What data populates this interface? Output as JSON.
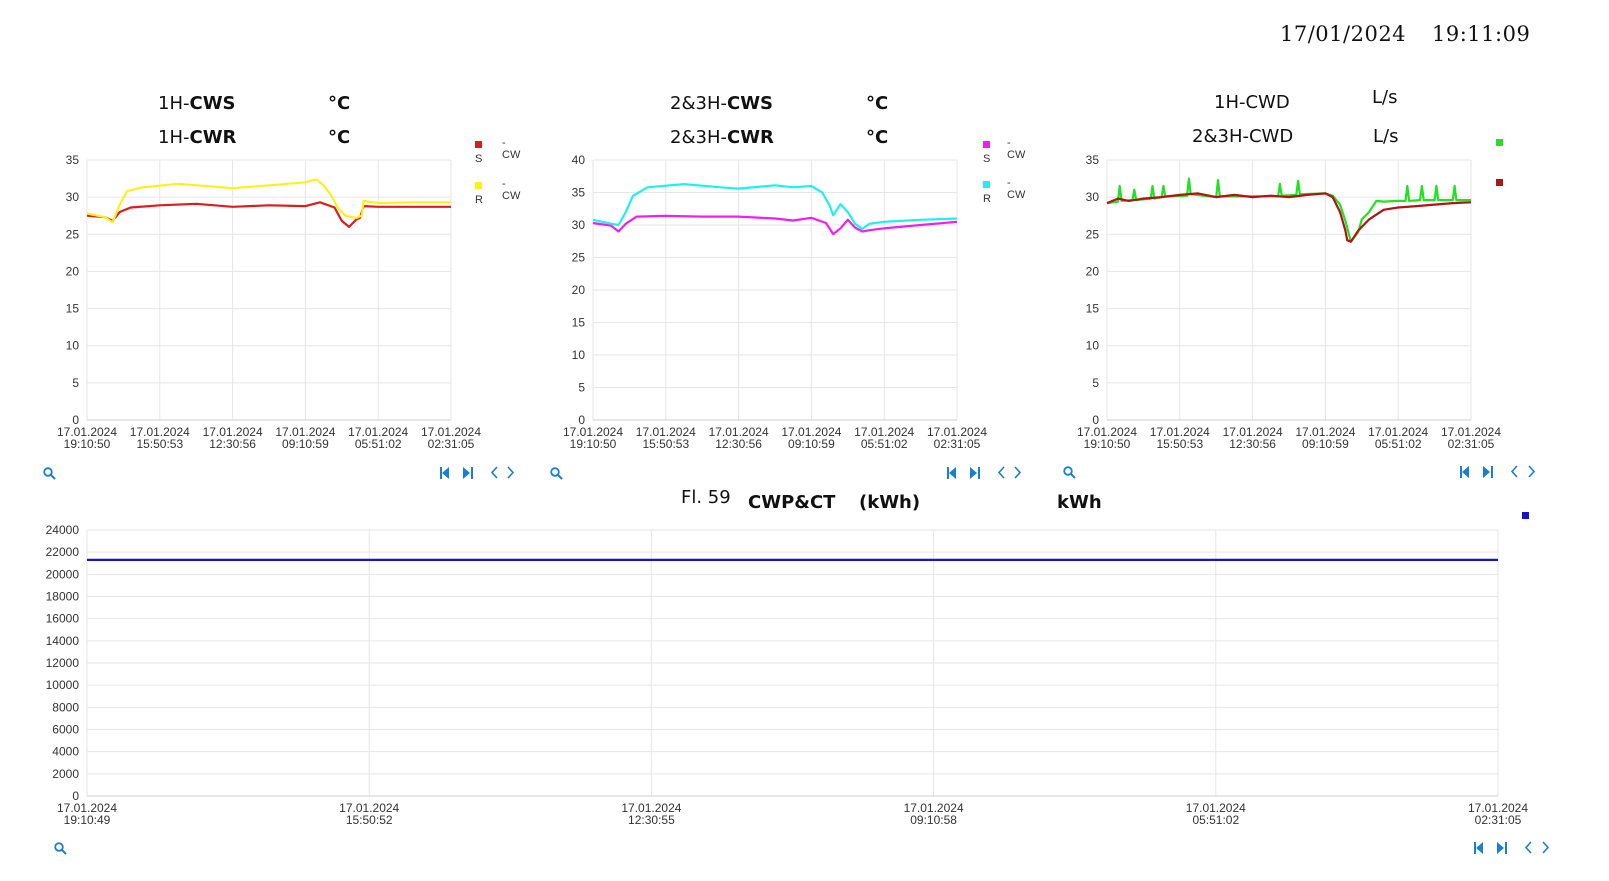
{
  "header": {
    "date": "17/01/2024",
    "time": "19:11:09"
  },
  "chart1": {
    "title1_prefix": "1H-",
    "title1_bold": "CWS",
    "unit1": "°C",
    "title2_prefix": "1H-",
    "title2_bold": "CWR",
    "unit2": "°C",
    "legend": [
      {
        "color": "#e01b1b",
        "label": "-CW",
        "sub": "S"
      },
      {
        "color": "#ffef20",
        "label": "-CW",
        "sub": "R"
      }
    ]
  },
  "chart2": {
    "title1_prefix": "2&3H-",
    "title1_bold": "CWS",
    "unit1": "°C",
    "title2_prefix": "2&3H-",
    "title2_bold": "CWR",
    "unit2": "°C",
    "legend": [
      {
        "color": "#f01ef0",
        "label": "-CW",
        "sub": "S"
      },
      {
        "color": "#1ef0f0",
        "label": "-CW",
        "sub": "R"
      }
    ]
  },
  "chart3": {
    "title1": "1H-CWD",
    "unit1": "L/s",
    "title2": "2&3H-CWD",
    "unit2": "L/s",
    "legend": [
      {
        "color": "#22e022",
        "label": ""
      },
      {
        "color": "#b01414",
        "label": ""
      }
    ]
  },
  "chart4": {
    "title_pre": "Fl. 59",
    "title_bold": "CWP&CT",
    "title_unit": "(kWh)",
    "unit": "kWh",
    "legend": [
      {
        "color": "#1414d0",
        "label": ""
      }
    ]
  },
  "icons": {
    "zoom": "magnifier-icon",
    "first": "skip-first-icon",
    "last": "skip-last-icon",
    "prev": "chevron-left-icon",
    "next": "chevron-right-icon"
  },
  "chart_data": [
    {
      "type": "line",
      "ylim": [
        0,
        35
      ],
      "yticks": [
        0,
        5,
        10,
        15,
        20,
        25,
        30,
        35
      ],
      "xtick_labels": [
        [
          "17.01.2024",
          "19:10:50"
        ],
        [
          "17.01.2024",
          "15:50:53"
        ],
        [
          "17.01.2024",
          "12:30:56"
        ],
        [
          "17.01.2024",
          "09:10:59"
        ],
        [
          "17.01.2024",
          "05:51:02"
        ],
        [
          "17.01.2024",
          "02:31:05"
        ]
      ],
      "grid": true,
      "series": [
        {
          "color": "#e01b1b",
          "t": [
            0,
            0.05,
            0.07,
            0.09,
            0.12,
            0.2,
            0.3,
            0.4,
            0.5,
            0.6,
            0.64,
            0.68,
            0.7,
            0.72,
            0.74,
            0.75,
            0.76,
            0.8,
            0.9,
            1.0
          ],
          "values": [
            27.5,
            27.3,
            26.8,
            28.0,
            28.6,
            28.9,
            29.1,
            28.7,
            28.9,
            28.8,
            29.3,
            28.6,
            26.8,
            26.0,
            27.0,
            27.2,
            28.8,
            28.7,
            28.7,
            28.7
          ]
        },
        {
          "color": "#ffef20",
          "t": [
            0,
            0.05,
            0.07,
            0.09,
            0.11,
            0.15,
            0.25,
            0.35,
            0.4,
            0.5,
            0.6,
            0.63,
            0.65,
            0.67,
            0.69,
            0.71,
            0.74,
            0.755,
            0.76,
            0.8,
            0.9,
            1.0
          ],
          "values": [
            27.8,
            27.3,
            26.6,
            29.0,
            30.8,
            31.3,
            31.8,
            31.4,
            31.2,
            31.6,
            32.0,
            32.4,
            31.6,
            30.3,
            28.5,
            27.5,
            27.2,
            27.5,
            29.5,
            29.2,
            29.3,
            29.3
          ]
        }
      ]
    },
    {
      "type": "line",
      "ylim": [
        0,
        40
      ],
      "yticks": [
        0,
        5,
        10,
        15,
        20,
        25,
        30,
        35,
        40
      ],
      "xtick_labels": [
        [
          "17.01.2024",
          "19:10:50"
        ],
        [
          "17.01.2024",
          "15:50:53"
        ],
        [
          "17.01.2024",
          "12:30:56"
        ],
        [
          "17.01.2024",
          "09:10:59"
        ],
        [
          "17.01.2024",
          "05:51:02"
        ],
        [
          "17.01.2024",
          "02:31:05"
        ]
      ],
      "grid": true,
      "series": [
        {
          "color": "#f01ef0",
          "t": [
            0,
            0.05,
            0.07,
            0.09,
            0.12,
            0.2,
            0.3,
            0.4,
            0.5,
            0.55,
            0.6,
            0.64,
            0.66,
            0.68,
            0.7,
            0.72,
            0.74,
            0.76,
            0.8,
            0.9,
            1.0
          ],
          "values": [
            30.3,
            29.9,
            29.0,
            30.2,
            31.3,
            31.4,
            31.3,
            31.3,
            31.0,
            30.7,
            31.1,
            30.3,
            28.6,
            29.5,
            30.8,
            29.6,
            29.0,
            29.2,
            29.5,
            30.0,
            30.5
          ]
        },
        {
          "color": "#1ef0f0",
          "t": [
            0,
            0.05,
            0.07,
            0.09,
            0.11,
            0.15,
            0.25,
            0.35,
            0.4,
            0.5,
            0.55,
            0.6,
            0.63,
            0.65,
            0.66,
            0.68,
            0.7,
            0.72,
            0.74,
            0.76,
            0.8,
            0.9,
            1.0
          ],
          "values": [
            30.8,
            30.2,
            30.0,
            32.0,
            34.5,
            35.8,
            36.3,
            35.8,
            35.6,
            36.1,
            35.8,
            36.0,
            35.0,
            33.0,
            31.5,
            33.2,
            32.0,
            30.2,
            29.4,
            30.2,
            30.5,
            30.8,
            31.0
          ]
        }
      ]
    },
    {
      "type": "line",
      "ylim": [
        0,
        35
      ],
      "yticks": [
        0,
        5,
        10,
        15,
        20,
        25,
        30,
        35
      ],
      "xtick_labels": [
        [
          "17.01.2024",
          "19:10:50"
        ],
        [
          "17.01.2024",
          "15:50:53"
        ],
        [
          "17.01.2024",
          "12:30:56"
        ],
        [
          "17.01.2024",
          "09:10:59"
        ],
        [
          "17.01.2024",
          "05:51:02"
        ],
        [
          "17.01.2024",
          "02:31:05"
        ]
      ],
      "grid": true,
      "series": [
        {
          "color": "#22e022",
          "t": [
            0,
            0.03,
            0.035,
            0.04,
            0.07,
            0.075,
            0.08,
            0.12,
            0.125,
            0.13,
            0.15,
            0.155,
            0.16,
            0.22,
            0.225,
            0.23,
            0.3,
            0.305,
            0.31,
            0.47,
            0.475,
            0.48,
            0.52,
            0.525,
            0.53,
            0.6,
            0.62,
            0.64,
            0.655,
            0.67,
            0.69,
            0.7,
            0.72,
            0.74,
            0.76,
            0.8,
            0.82,
            0.825,
            0.83,
            0.86,
            0.865,
            0.87,
            0.9,
            0.905,
            0.91,
            0.95,
            0.955,
            0.96,
            1.0
          ],
          "values": [
            29.2,
            29.4,
            31.5,
            29.5,
            29.6,
            31.0,
            29.6,
            29.8,
            31.5,
            29.8,
            30.0,
            31.5,
            30.1,
            30.2,
            32.5,
            30.4,
            30.0,
            32.3,
            30.1,
            30.1,
            31.8,
            30.2,
            30.3,
            32.2,
            30.4,
            30.5,
            30.2,
            29.0,
            26.8,
            24.0,
            25.3,
            27.0,
            28.0,
            29.5,
            29.4,
            29.5,
            29.5,
            31.5,
            29.5,
            29.6,
            31.5,
            29.6,
            29.6,
            31.5,
            29.6,
            29.6,
            31.5,
            29.6,
            29.6
          ]
        },
        {
          "color": "#b01414",
          "t": [
            0,
            0.03,
            0.06,
            0.1,
            0.15,
            0.2,
            0.25,
            0.3,
            0.35,
            0.4,
            0.45,
            0.5,
            0.55,
            0.6,
            0.62,
            0.64,
            0.655,
            0.66,
            0.67,
            0.69,
            0.72,
            0.76,
            0.8,
            0.85,
            0.9,
            0.95,
            1.0
          ],
          "values": [
            29.2,
            29.8,
            29.5,
            29.8,
            30.0,
            30.3,
            30.5,
            30.0,
            30.3,
            30.0,
            30.2,
            30.0,
            30.3,
            30.5,
            30.0,
            28.0,
            25.5,
            24.2,
            24.0,
            25.5,
            27.0,
            28.3,
            28.6,
            28.8,
            29.0,
            29.2,
            29.3
          ]
        }
      ]
    },
    {
      "type": "line",
      "ylim": [
        0,
        24000
      ],
      "yticks": [
        0,
        2000,
        4000,
        6000,
        8000,
        10000,
        12000,
        14000,
        16000,
        18000,
        20000,
        22000,
        24000
      ],
      "xtick_labels": [
        [
          "17.01.2024",
          "19:10:49"
        ],
        [
          "17.01.2024",
          "15:50:52"
        ],
        [
          "17.01.2024",
          "12:30:55"
        ],
        [
          "17.01.2024",
          "09:10:58"
        ],
        [
          "17.01.2024",
          "05:51:02"
        ],
        [
          "17.01.2024",
          "02:31:05"
        ]
      ],
      "grid": true,
      "series": [
        {
          "color": "#1414d0",
          "t": [
            0,
            1
          ],
          "values": [
            21300,
            21300
          ]
        }
      ]
    }
  ]
}
